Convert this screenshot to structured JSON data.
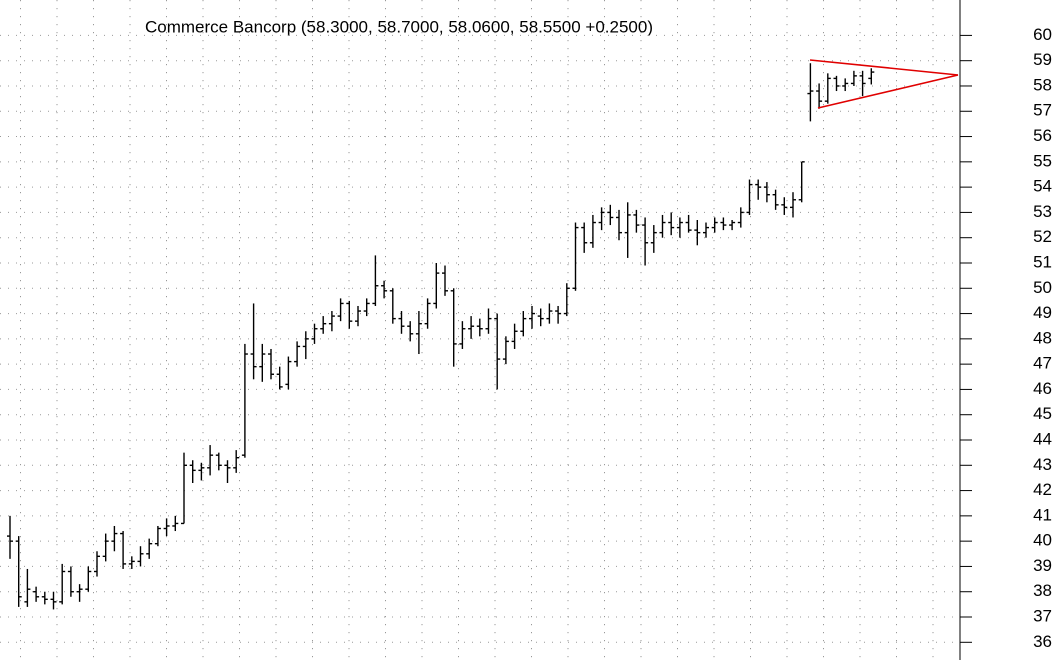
{
  "chart_data": {
    "type": "ohlc",
    "subtitle": "Commerce Bancorp (58.3000, 58.7000, 58.0600, 58.5500 +0.2500)",
    "open": [
      40.2,
      40,
      37.6,
      38,
      37.8,
      37.7,
      37.6,
      38.8,
      38,
      38.1,
      38.8,
      39.4,
      40,
      40.3,
      39.1,
      39.2,
      39.5,
      39.9,
      40.5,
      40.6,
      40.7,
      43,
      42.8,
      42.9,
      43.4,
      43,
      42.9,
      43.4,
      47.4,
      46.9,
      47.4,
      46.6,
      46.2,
      47.1,
      47.7,
      48,
      48.4,
      48.6,
      48.9,
      49.4,
      48.7,
      49.1,
      49.4,
      50.1,
      49.9,
      48.8,
      48.5,
      48.2,
      48.6,
      49.4,
      50.6,
      49.9,
      47.8,
      48.4,
      48.5,
      48.4,
      48.8,
      47.2,
      47.9,
      48.3,
      48.8,
      48.9,
      48.8,
      49.1,
      49,
      50,
      52.4,
      51.8,
      52.6,
      53,
      52.8,
      52.2,
      52.9,
      52.5,
      51.8,
      52.2,
      52.6,
      52.4,
      52.6,
      52.3,
      52.2,
      52.4,
      52.6,
      52.5,
      52.6,
      53,
      54.1,
      54,
      53.7,
      53.3,
      53.2,
      53.5,
      57.7,
      57.8,
      57.4,
      58.3,
      58,
      58.1,
      58.4,
      58.3
    ],
    "high": [
      41,
      40.2,
      38.9,
      38.2,
      38,
      38,
      39.1,
      39,
      38.3,
      39,
      39.6,
      40.3,
      40.6,
      40.4,
      39.4,
      39.8,
      40.1,
      40.6,
      40.9,
      41,
      43.5,
      43.2,
      43.1,
      43.8,
      43.5,
      43.2,
      43.6,
      47.8,
      49.4,
      47.8,
      47.6,
      46.9,
      47.3,
      47.9,
      48.3,
      48.6,
      48.9,
      49.1,
      49.6,
      49.5,
      49.3,
      49.6,
      51.3,
      50.3,
      50,
      49.1,
      48.7,
      49.1,
      49.6,
      51,
      50.9,
      50,
      48.7,
      48.9,
      48.8,
      49.2,
      49,
      48.1,
      48.6,
      49.1,
      49.3,
      49.2,
      49.4,
      49.3,
      50.2,
      52.6,
      52.6,
      52.9,
      53.2,
      53.3,
      53.1,
      53.4,
      53.1,
      52.8,
      52.5,
      52.9,
      53,
      52.8,
      52.9,
      52.7,
      52.6,
      52.8,
      52.8,
      52.7,
      53.2,
      54.3,
      54.3,
      54.2,
      53.9,
      53.6,
      53.8,
      55,
      58.9,
      58.1,
      58.5,
      58.4,
      58.3,
      58.6,
      58.6,
      58.7
    ],
    "low": [
      39.3,
      37.4,
      37.4,
      37.6,
      37.5,
      37.3,
      37.5,
      37.8,
      37.6,
      38,
      38.6,
      39.2,
      39.6,
      38.9,
      38.9,
      39,
      39.3,
      39.8,
      40.2,
      40.4,
      40.7,
      42.3,
      42.4,
      42.6,
      42.8,
      42.3,
      42.7,
      43.3,
      46.4,
      46.3,
      46.4,
      46,
      46,
      46.9,
      47.2,
      47.8,
      48.2,
      48.3,
      48.7,
      48.4,
      48.5,
      48.9,
      49.3,
      49.6,
      48.6,
      48.2,
      47.9,
      47.4,
      48.4,
      49.2,
      49.7,
      46.9,
      47.6,
      48,
      48.1,
      48.2,
      46,
      47,
      47.6,
      48.1,
      48.4,
      48.5,
      48.6,
      48.6,
      48.9,
      49.9,
      51.4,
      51.6,
      52.3,
      52.5,
      51.9,
      51.2,
      52.2,
      50.9,
      51.4,
      52,
      52.1,
      52,
      52.2,
      51.7,
      52,
      52.2,
      52.3,
      52.3,
      52.4,
      52.9,
      53.5,
      53.4,
      53.1,
      52.9,
      52.8,
      53.4,
      56.6,
      57.1,
      57.3,
      57.8,
      57.8,
      58,
      57.6,
      58.06
    ],
    "close": [
      40,
      37.8,
      38.1,
      37.8,
      37.7,
      37.6,
      38.8,
      38,
      38.1,
      38.8,
      39.4,
      40,
      40.3,
      39.1,
      39.2,
      39.5,
      39.9,
      40.5,
      40.6,
      40.7,
      43,
      42.8,
      42.9,
      43.4,
      43,
      42.9,
      43.3,
      47.4,
      46.9,
      47.4,
      46.6,
      46.1,
      47.1,
      47.7,
      48,
      48.4,
      48.6,
      48.9,
      49.4,
      48.7,
      49.1,
      49.4,
      50.1,
      49.9,
      48.8,
      48.5,
      48.2,
      48.6,
      49.4,
      50.6,
      49.9,
      47.8,
      48.4,
      48.5,
      48.4,
      48.8,
      47.2,
      47.9,
      48.3,
      48.8,
      49,
      48.8,
      49.1,
      49,
      50,
      52.4,
      51.8,
      52.6,
      53,
      52.8,
      52.2,
      52.9,
      52.5,
      51.8,
      52.2,
      52.6,
      52.4,
      52.6,
      52.3,
      52.2,
      52.4,
      52.6,
      52.5,
      52.6,
      53,
      54.1,
      54,
      53.7,
      53.3,
      53.2,
      53.5,
      55,
      57.8,
      57.4,
      58.3,
      58,
      58.1,
      58.4,
      58.1,
      58.55
    ],
    "ylim": [
      35.3,
      61.4
    ],
    "yticks": [
      36,
      37,
      38,
      39,
      40,
      41,
      42,
      43,
      44,
      45,
      46,
      47,
      48,
      49,
      50,
      51,
      52,
      53,
      54,
      55,
      56,
      57,
      58,
      59,
      60
    ],
    "grid": true
  }
}
